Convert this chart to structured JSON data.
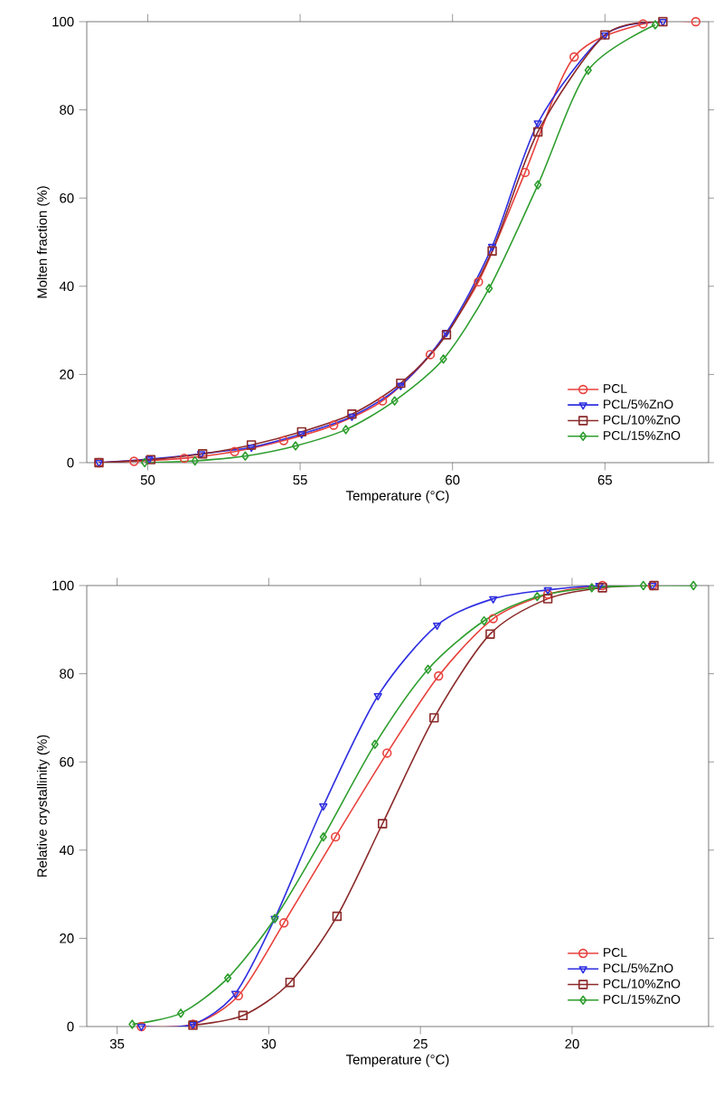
{
  "chart_data": [
    {
      "type": "line",
      "xlabel": "Temperature (°C)",
      "ylabel": "Molten fraction (%)",
      "xlim": [
        48,
        68.4
      ],
      "ylim": [
        0,
        100
      ],
      "xticks": [
        50,
        55,
        60,
        65
      ],
      "yticks": [
        0,
        20,
        40,
        60,
        80,
        100
      ],
      "legend": "bottom right",
      "grid": false,
      "line_style": "solid",
      "series": [
        {
          "name": "PCL",
          "color": "#e8413c",
          "marker": "circle",
          "x": [
            48.4,
            49.55,
            51.2,
            52.85,
            54.46,
            56.1,
            57.7,
            59.27,
            60.85,
            62.38,
            63.99,
            66.25,
            67.98
          ],
          "values": [
            0,
            0.3,
            1,
            2.5,
            5,
            8.5,
            14,
            24.5,
            41,
            65.8,
            92,
            99.5,
            100
          ]
        },
        {
          "name": "PCL/5%ZnO",
          "color": "#2f2fe0",
          "marker": "triangle",
          "x": [
            48.4,
            50.05,
            51.75,
            53.4,
            55.05,
            56.7,
            58.3,
            59.8,
            61.3,
            62.8,
            65.0,
            66.9
          ],
          "values": [
            0,
            0.8,
            2,
            3.5,
            6.5,
            10.5,
            17.5,
            29.5,
            49,
            77,
            97,
            100
          ]
        },
        {
          "name": "PCL/10%ZnO",
          "color": "#8b2a2a",
          "marker": "square",
          "x": [
            48.4,
            50.1,
            51.8,
            53.4,
            55.05,
            56.7,
            58.3,
            59.8,
            61.3,
            62.8,
            65.0,
            66.9
          ],
          "values": [
            0,
            0.7,
            2,
            4,
            7,
            11,
            18,
            29,
            48,
            75,
            97,
            100
          ]
        },
        {
          "name": "PCL/15%ZnO",
          "color": "#2e9e2e",
          "marker": "diamond",
          "x": [
            49.9,
            51.55,
            53.2,
            54.85,
            56.5,
            58.1,
            59.7,
            61.2,
            62.8,
            64.45,
            66.65
          ],
          "values": [
            0,
            0.4,
            1.5,
            3.8,
            7.5,
            14,
            23.5,
            39.5,
            63,
            89,
            99.3
          ]
        }
      ]
    },
    {
      "type": "line",
      "xlabel": "Temperature (°C)",
      "ylabel": "Relative crystallinity (%)",
      "xlim": [
        36,
        15.5
      ],
      "ylim": [
        0,
        100
      ],
      "xticks": [
        35,
        30,
        25,
        20
      ],
      "yticks": [
        0,
        20,
        40,
        60,
        80,
        100
      ],
      "legend": "bottom right",
      "grid": false,
      "line_style": "solid",
      "series": [
        {
          "name": "PCL",
          "color": "#e8413c",
          "marker": "circle",
          "x": [
            34.2,
            32.5,
            31.0,
            29.5,
            27.8,
            26.1,
            24.4,
            22.6,
            20.8,
            19.0,
            17.35
          ],
          "values": [
            0,
            0.5,
            7,
            23.5,
            43,
            62,
            79.5,
            92.5,
            98,
            100,
            100
          ]
        },
        {
          "name": "PCL/5%ZnO",
          "color": "#2f2fe0",
          "marker": "triangle",
          "x": [
            34.2,
            32.5,
            31.1,
            29.8,
            28.2,
            26.4,
            24.45,
            22.6,
            20.8,
            19.1,
            17.35
          ],
          "values": [
            0,
            0.5,
            7.5,
            24.5,
            50,
            75,
            91,
            97,
            99,
            100,
            100
          ]
        },
        {
          "name": "PCL/10%ZnO",
          "color": "#8b2a2a",
          "marker": "square",
          "x": [
            32.5,
            30.85,
            29.3,
            27.75,
            26.25,
            24.55,
            22.7,
            20.8,
            19.0,
            17.3
          ],
          "values": [
            0.3,
            2.5,
            10,
            25,
            46,
            70,
            89,
            97,
            99.5,
            100
          ]
        },
        {
          "name": "PCL/15%ZnO",
          "color": "#2e9e2e",
          "marker": "diamond",
          "x": [
            34.5,
            32.9,
            31.35,
            29.8,
            28.2,
            26.5,
            24.75,
            22.9,
            21.15,
            19.35,
            17.65,
            16.0
          ],
          "values": [
            0.5,
            3,
            11,
            24.5,
            43,
            64,
            81,
            92,
            97.5,
            99.5,
            100,
            100
          ]
        }
      ]
    }
  ]
}
